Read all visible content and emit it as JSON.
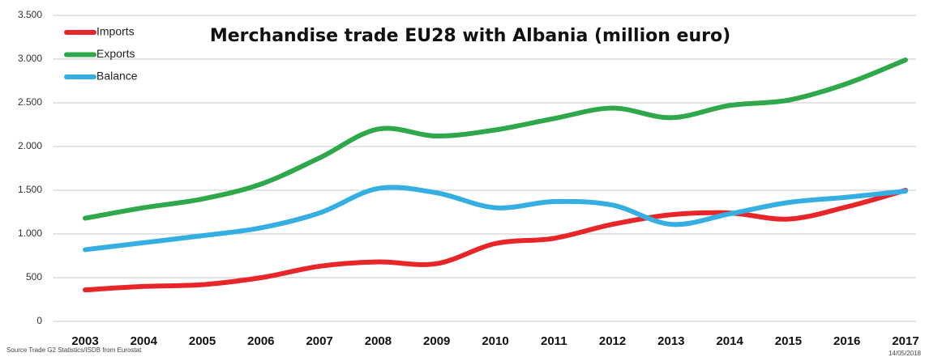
{
  "chart_data": {
    "type": "line",
    "title": "Merchandise trade EU28 with Albania (million euro)",
    "source": "Source Trade G2 Statistics/ISDB from Eurostat",
    "date": "14/05/2018",
    "categories": [
      "2003",
      "2004",
      "2005",
      "2006",
      "2007",
      "2008",
      "2009",
      "2010",
      "2011",
      "2012",
      "2013",
      "2014",
      "2015",
      "2016",
      "2017"
    ],
    "series": [
      {
        "name": "Imports",
        "color": "#e8262a",
        "values": [
          360,
          400,
          420,
          500,
          630,
          680,
          660,
          890,
          950,
          1110,
          1220,
          1240,
          1170,
          1310,
          1500
        ]
      },
      {
        "name": "Exports",
        "color": "#2ea84a",
        "values": [
          1180,
          1300,
          1400,
          1570,
          1870,
          2200,
          2120,
          2190,
          2320,
          2440,
          2330,
          2470,
          2530,
          2720,
          2990
        ]
      },
      {
        "name": "Balance",
        "color": "#35aee2",
        "values": [
          820,
          900,
          980,
          1070,
          1240,
          1520,
          1470,
          1300,
          1370,
          1330,
          1110,
          1230,
          1360,
          1420,
          1490
        ]
      }
    ],
    "ylim": [
      0,
      3500
    ],
    "yticks": [
      0,
      500,
      {
        "value": 1000,
        "label": "1.000"
      },
      {
        "value": 1500,
        "label": "1.500"
      },
      {
        "value": 2000,
        "label": "2.000"
      },
      {
        "value": 2500,
        "label": "2.500"
      },
      {
        "value": 3000,
        "label": "3.000"
      },
      {
        "value": 3500,
        "label": "3.500"
      }
    ],
    "grid": true,
    "legend": "top-left",
    "smooth": true
  }
}
